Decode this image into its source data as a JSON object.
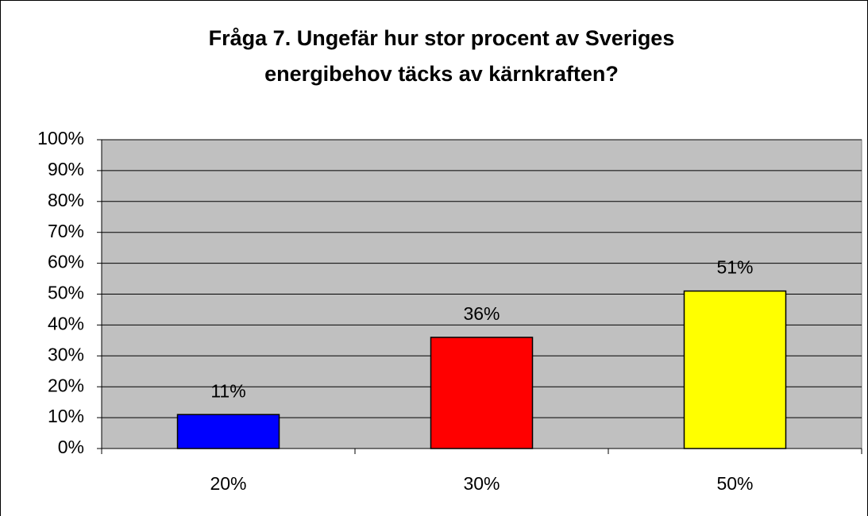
{
  "chart_data": {
    "type": "bar",
    "title": [
      "Fråga 7. Ungefär hur stor procent av Sveriges",
      "energibehov täcks av kärnkraften?"
    ],
    "categories": [
      "20%",
      "30%",
      "50%"
    ],
    "values": [
      11,
      36,
      51
    ],
    "value_labels": [
      "11%",
      "36%",
      "51%"
    ],
    "colors": [
      "#0000ff",
      "#ff0000",
      "#ffff00"
    ],
    "ylim": [
      0,
      100
    ],
    "yticks": [
      {
        "value": 0,
        "label": "0%"
      },
      {
        "value": 10,
        "label": "10%"
      },
      {
        "value": 20,
        "label": "20%"
      },
      {
        "value": 30,
        "label": "30%"
      },
      {
        "value": 40,
        "label": "40%"
      },
      {
        "value": 50,
        "label": "50%"
      },
      {
        "value": 60,
        "label": "60%"
      },
      {
        "value": 70,
        "label": "70%"
      },
      {
        "value": 80,
        "label": "80%"
      },
      {
        "value": 90,
        "label": "90%"
      },
      {
        "value": 100,
        "label": "100%"
      }
    ],
    "grid": true
  }
}
